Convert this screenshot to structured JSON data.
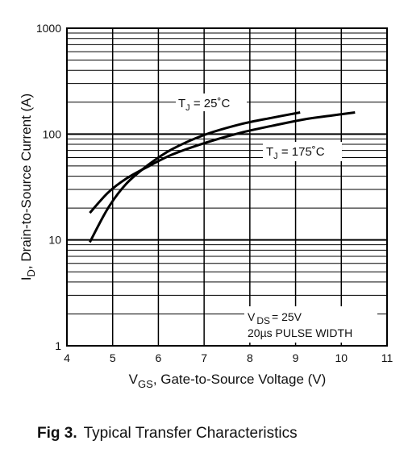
{
  "figure": {
    "number": "Fig 3.",
    "title": "Typical Transfer Characteristics"
  },
  "chart_data": {
    "type": "line",
    "xlabel": {
      "main": "V",
      "sub": "GS",
      "rest": ", Gate-to-Source Voltage (V)"
    },
    "ylabel": {
      "main": "I",
      "sub": "D",
      "rest": ",  Drain-to-Source Current (A)"
    },
    "xlim": [
      4,
      11
    ],
    "ylim": [
      1,
      1000
    ],
    "yscale": "log",
    "grid": true,
    "x_ticks": [
      "4",
      "5",
      "6",
      "7",
      "8",
      "9",
      "10",
      "11"
    ],
    "y_ticks": [
      "1",
      "10",
      "100",
      "1000"
    ],
    "series": [
      {
        "name": "TJ = 25°C",
        "x": [
          4.5,
          4.9,
          5.3,
          5.8,
          6.3,
          7.0,
          7.8,
          8.5,
          9.1
        ],
        "y": [
          9.5,
          20,
          34,
          52,
          72,
          98,
          124,
          143,
          160
        ]
      },
      {
        "name": "TJ = 175°C",
        "x": [
          4.5,
          4.9,
          5.3,
          5.8,
          6.3,
          7.0,
          7.8,
          8.5,
          9.2,
          9.8,
          10.3
        ],
        "y": [
          18,
          28,
          38,
          50,
          64,
          82,
          103,
          120,
          138,
          150,
          160
        ]
      }
    ],
    "annotations": {
      "tj25": {
        "prefix": "T",
        "sub": "J",
        "rest": " = 25˚C"
      },
      "tj175": {
        "prefix": "T",
        "sub": "J",
        "rest": " = 175˚C"
      },
      "vds": {
        "prefix": "V",
        "sub": "DS",
        "rest": "= 25V"
      },
      "pulse": "20µs PULSE WIDTH"
    }
  }
}
